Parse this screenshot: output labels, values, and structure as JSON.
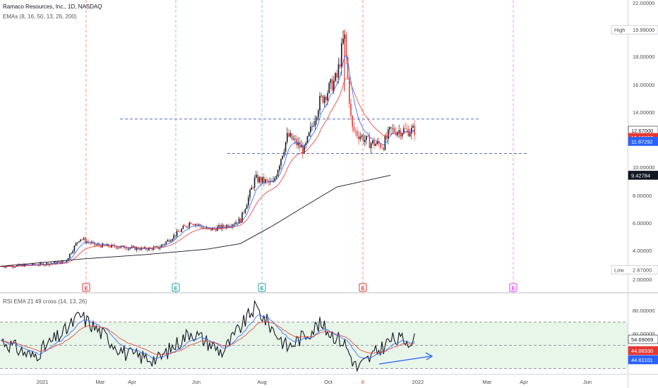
{
  "header": {
    "symbol_title": "Ramaco Resources, Inc., 1D, NASDAQ",
    "indicator_label": "EMAs (8, 16, 50, 13, 26, 200)"
  },
  "rsi_panel": {
    "title": "RSI EMA 21 49 cross (14, 13, 26)",
    "yticks": [
      "80.00000",
      "60.00000",
      "40.00000"
    ],
    "levels": [
      70,
      50,
      30
    ],
    "labels": [
      {
        "text": "54.69069",
        "bg": "#ffffff",
        "fg": "#131722"
      },
      {
        "text": "44.88330",
        "bg": "#e53935",
        "fg": "#ffffff"
      },
      {
        "text": "44.61101",
        "bg": "#2962ff",
        "fg": "#ffffff"
      }
    ]
  },
  "price_axis": {
    "yticks": [
      "22.00000",
      "18.00000",
      "16.00000",
      "14.00000",
      "10.00000",
      "8.00000",
      "6.00000",
      "4.00000",
      "2.00000"
    ],
    "labels": [
      {
        "text": "12.67000",
        "value": 12.67,
        "bg": "#ffffff",
        "fg": "#131722"
      },
      {
        "text": "12.15882",
        "value": 12.159,
        "bg": "#e53935",
        "fg": "#ffffff"
      },
      {
        "text": "11.87292",
        "value": 11.873,
        "bg": "#2962ff",
        "fg": "#ffffff"
      },
      {
        "text": "9.42784",
        "value": 9.428,
        "bg": "#131722",
        "fg": "#ffffff"
      }
    ],
    "high": {
      "label": "High",
      "value_text": "19.99000",
      "value": 19.99
    },
    "low": {
      "label": "Low",
      "value_text": "2.67000",
      "value": 2.67
    }
  },
  "x_axis": {
    "labels": [
      "2021",
      "Mar",
      "Apr",
      "Jun",
      "Aug",
      "Oct",
      "8",
      "2022",
      "Mar",
      "Apr",
      "Jun"
    ]
  },
  "earnings_markers": [
    {
      "label": "E",
      "month": "Mar",
      "color": "#e53935"
    },
    {
      "label": "E",
      "month": "May",
      "color": "#26a69a"
    },
    {
      "label": "E",
      "month": "Aug",
      "color": "#26a69a"
    },
    {
      "label": "E",
      "month": "Nov",
      "color": "#e53935"
    },
    {
      "label": "E",
      "month": "Mar 2022",
      "color": "#e040fb"
    }
  ],
  "colors": {
    "up_candle": "#131722",
    "down_candle": "#e53935",
    "ema_fast": "#2962ff",
    "ema_mid": "#e53935",
    "ema_200": "#131722",
    "rsi_line": "#131722",
    "rsi_band": "#e8f5e9",
    "h_levels": "#5c6bc0",
    "trend_arrow": "#2962ff"
  },
  "chart_data": [
    {
      "type": "candlestick",
      "title": "Ramaco Resources, Inc., 1D, NASDAQ",
      "ylim": [
        2,
        22
      ],
      "x_range": [
        "2021-01",
        "2022-07"
      ],
      "horizontal_levels": [
        13.5,
        11.0
      ],
      "high": 19.99,
      "low": 2.67,
      "series": [
        {
          "name": "Price (close)",
          "x": [
            "2020-12-15",
            "2021-01-15",
            "2021-02-15",
            "2021-03-01",
            "2021-03-15",
            "2021-04-15",
            "2021-05-01",
            "2021-05-15",
            "2021-06-01",
            "2021-06-15",
            "2021-07-01",
            "2021-07-15",
            "2021-08-01",
            "2021-08-15",
            "2021-09-01",
            "2021-09-15",
            "2021-10-01",
            "2021-10-15",
            "2021-11-01",
            "2021-11-08",
            "2021-11-15",
            "2021-12-01",
            "2021-12-15",
            "2021-12-22"
          ],
          "values": [
            2.9,
            3.0,
            3.2,
            4.9,
            4.4,
            4.2,
            4.1,
            4.2,
            5.2,
            6.1,
            5.5,
            5.7,
            6.2,
            9.2,
            8.8,
            12.3,
            11.2,
            14.7,
            16.5,
            19.6,
            12.8,
            11.8,
            11.6,
            12.67
          ]
        },
        {
          "name": "EMA 200",
          "x": [
            "2020-12-15",
            "2021-03-01",
            "2021-05-01",
            "2021-07-01",
            "2021-08-01",
            "2021-09-01",
            "2021-10-01",
            "2021-11-01",
            "2021-12-22"
          ],
          "values": [
            2.9,
            3.4,
            3.7,
            4.1,
            4.5,
            5.8,
            7.2,
            8.6,
            9.43
          ]
        }
      ]
    },
    {
      "type": "line",
      "title": "RSI EMA 21 49 cross (14, 13, 26)",
      "ylim": [
        20,
        90
      ],
      "x": [
        "2020-12-15",
        "2021-01-15",
        "2021-02-15",
        "2021-03-01",
        "2021-04-15",
        "2021-05-15",
        "2021-06-15",
        "2021-07-15",
        "2021-08-15",
        "2021-09-15",
        "2021-10-15",
        "2021-11-08",
        "2021-11-20",
        "2021-12-01",
        "2021-12-22"
      ],
      "series": [
        {
          "name": "RSI",
          "values": [
            55,
            40,
            62,
            76,
            42,
            38,
            62,
            44,
            83,
            48,
            68,
            52,
            30,
            38,
            54.69
          ]
        }
      ]
    }
  ]
}
